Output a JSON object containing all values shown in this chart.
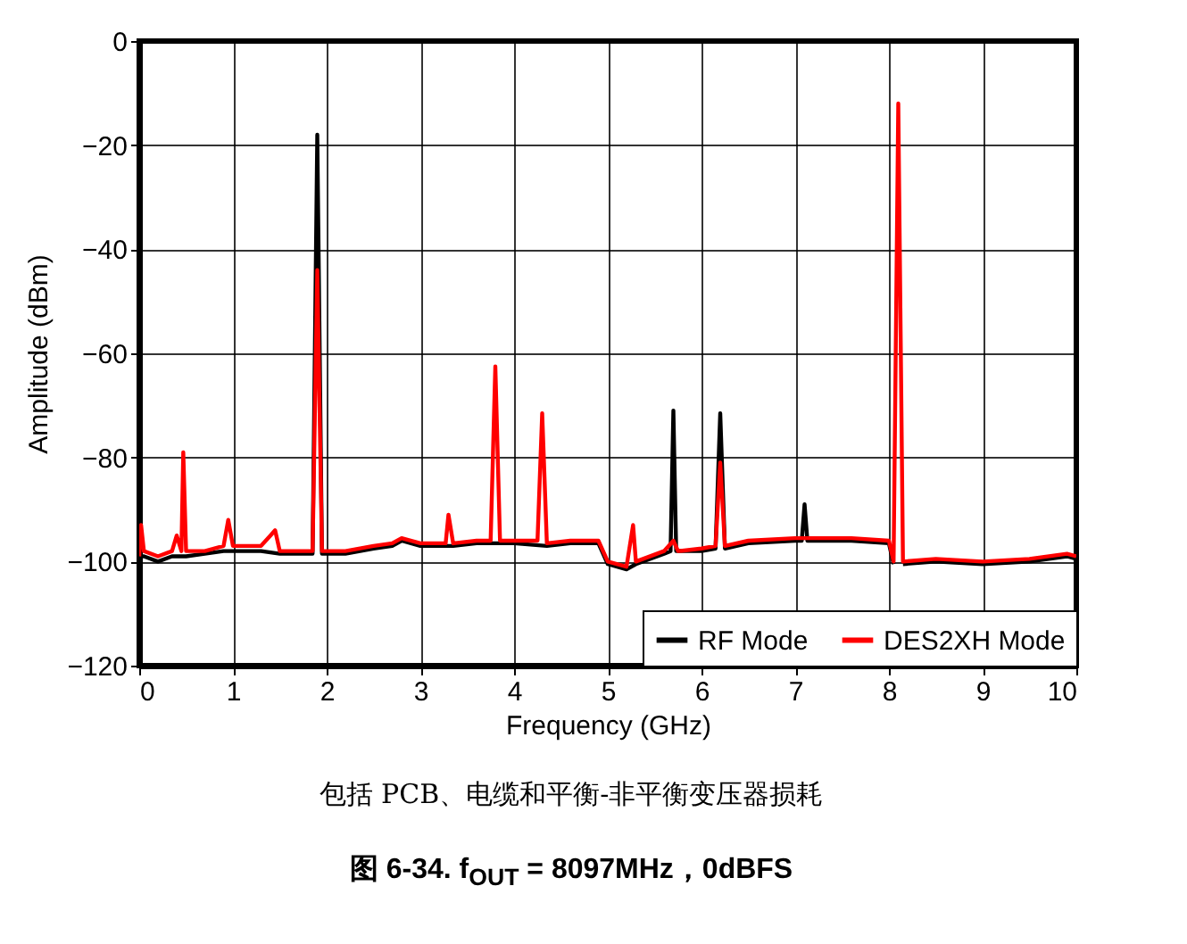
{
  "chart_data": {
    "type": "line",
    "title": "图 6-34. f$_{OUT}$ = 8097MHz，0dBFS",
    "xlabel": "Frequency (GHz)",
    "ylabel": "Amplitude (dBm)",
    "annotations": [
      "包括 PCB、电缆和平衡-非平衡变压器损耗"
    ],
    "xlim": [
      0,
      10
    ],
    "xticks": [
      0,
      1,
      2,
      3,
      4,
      5,
      6,
      7,
      8,
      9,
      10
    ],
    "ylim": [
      -120,
      0
    ],
    "yticks": [
      -120,
      -100,
      -80,
      -60,
      -40,
      -20,
      0
    ],
    "grid": true,
    "legend": "bottom right",
    "line_style": "solid",
    "marker": "none",
    "series": [
      {
        "name": "RF Mode",
        "color": "#000000",
        "x": [
          0,
          0.05,
          0.2,
          0.35,
          0.5,
          0.7,
          0.9,
          1.0,
          1.3,
          1.5,
          1.7,
          1.85,
          1.9,
          1.95,
          2.2,
          2.5,
          2.7,
          2.8,
          3.0,
          3.35,
          3.6,
          4.0,
          4.35,
          4.6,
          4.9,
          5.0,
          5.2,
          5.3,
          5.6,
          5.67,
          5.7,
          5.73,
          6.0,
          6.15,
          6.2,
          6.25,
          6.5,
          7.0,
          7.07,
          7.1,
          7.13,
          7.6,
          8.0,
          8.05,
          8.1,
          8.15,
          8.5,
          9.0,
          9.5,
          9.9,
          10
        ],
        "values": [
          -99,
          -99,
          -100,
          -99,
          -99,
          -98.5,
          -98,
          -98,
          -98,
          -98.5,
          -98.5,
          -98.5,
          -18,
          -98.5,
          -98.5,
          -97.5,
          -97,
          -96,
          -97,
          -97,
          -96.5,
          -96.5,
          -97,
          -96.5,
          -96.5,
          -100.5,
          -101.5,
          -100.5,
          -98.5,
          -98,
          -71,
          -98,
          -98,
          -97.5,
          -71.5,
          -97.5,
          -96.5,
          -96,
          -96,
          -89,
          -96,
          -96,
          -96.5,
          -100.5,
          null,
          -100.5,
          -100,
          -100.5,
          -100,
          -99,
          -99.5
        ]
      },
      {
        "name": "DES2XH Mode",
        "color": "#ff0000",
        "x": [
          0,
          0.02,
          0.05,
          0.2,
          0.35,
          0.4,
          0.45,
          0.47,
          0.5,
          0.7,
          0.9,
          0.95,
          1.0,
          1.3,
          1.4,
          1.45,
          1.5,
          1.7,
          1.85,
          1.9,
          1.95,
          2.2,
          2.5,
          2.7,
          2.8,
          3.0,
          3.27,
          3.3,
          3.35,
          3.6,
          3.75,
          3.8,
          3.85,
          4.0,
          4.25,
          4.3,
          4.35,
          4.6,
          4.9,
          5.0,
          5.2,
          5.27,
          5.3,
          5.6,
          5.7,
          5.75,
          6.0,
          6.15,
          6.2,
          6.25,
          6.5,
          7.0,
          7.6,
          8.0,
          8.05,
          8.1,
          8.15,
          8.5,
          9.0,
          9.5,
          9.9,
          10
        ],
        "values": [
          -99,
          -93,
          -98,
          -99,
          -98,
          -95,
          -98,
          -79,
          -98,
          -98,
          -97,
          -92,
          -97,
          -97,
          -95,
          -94,
          -98,
          -98,
          -98,
          -44,
          -98,
          -98,
          -97,
          -96.5,
          -95.5,
          -96.5,
          -96.5,
          -91,
          -96.5,
          -96,
          -96,
          -62.5,
          -96,
          -96,
          -96,
          -71.5,
          -96.5,
          -96,
          -96,
          -100,
          -101,
          -93,
          -100,
          -98,
          -96,
          -98,
          -97.5,
          -97,
          -81,
          -97,
          -96,
          -95.5,
          -95.5,
          -96,
          -100,
          -12,
          -100,
          -99.5,
          -100,
          -99.5,
          -98.5,
          -99
        ]
      }
    ]
  }
}
